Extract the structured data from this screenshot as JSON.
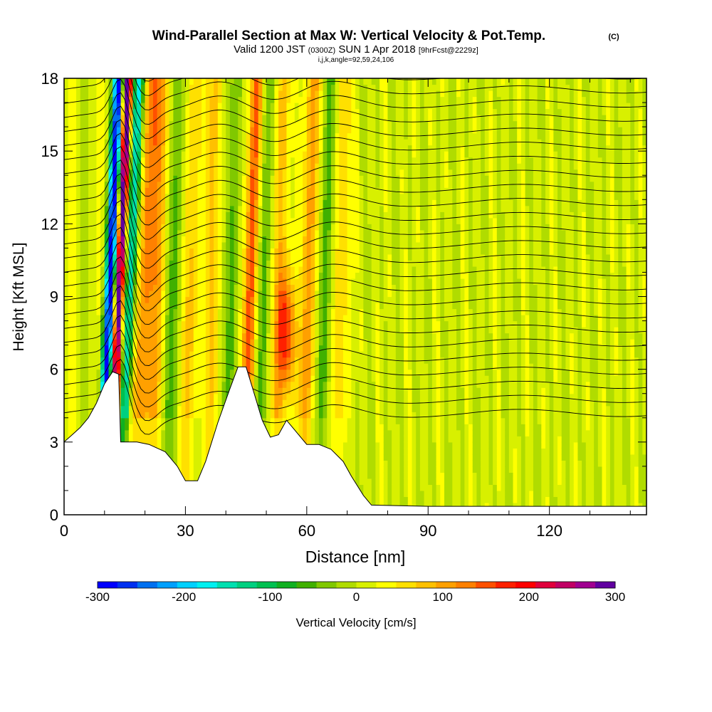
{
  "chart_data": {
    "type": "heatmap",
    "title": "Wind-Parallel Section at Max W: Vertical Velocity & Pot.Temp.",
    "title_mark": "(C)",
    "subtitle_parts": [
      "Valid 1200 JST ",
      "(0300Z)",
      " SUN 1 Apr 2018 ",
      "[9hrFcst@2229z]"
    ],
    "subtitle2": "i,j,k,angle=92,59,24,106",
    "xlabel": "Distance [nm]",
    "ylabel": "Height [Kft MSL]",
    "xlim": [
      0,
      144
    ],
    "ylim": [
      0,
      18
    ],
    "x_ticks": [
      "0",
      "30",
      "60",
      "90",
      "120"
    ],
    "x_tick_values": [
      0,
      30,
      60,
      90,
      120
    ],
    "y_ticks": [
      "0",
      "3",
      "6",
      "9",
      "12",
      "15",
      "18"
    ],
    "y_tick_values": [
      0,
      3,
      6,
      9,
      12,
      15,
      18
    ],
    "terrain_height": [
      [
        0,
        3.0
      ],
      [
        2,
        3.3
      ],
      [
        4,
        3.6
      ],
      [
        6,
        4.0
      ],
      [
        8,
        4.6
      ],
      [
        10,
        5.4
      ],
      [
        12,
        5.9
      ],
      [
        13.5,
        5.8
      ],
      [
        14,
        3.0
      ],
      [
        18,
        3.0
      ],
      [
        21,
        2.9
      ],
      [
        25,
        2.6
      ],
      [
        28,
        2.0
      ],
      [
        30,
        1.4
      ],
      [
        33,
        1.4
      ],
      [
        35,
        2.2
      ],
      [
        38,
        3.8
      ],
      [
        41,
        5.2
      ],
      [
        43,
        6.1
      ],
      [
        45,
        6.1
      ],
      [
        47,
        5.0
      ],
      [
        49,
        3.9
      ],
      [
        51,
        3.2
      ],
      [
        53,
        3.3
      ],
      [
        55,
        3.9
      ],
      [
        57,
        3.5
      ],
      [
        60,
        2.9
      ],
      [
        63,
        2.9
      ],
      [
        66,
        2.7
      ],
      [
        69,
        2.2
      ],
      [
        71,
        1.6
      ],
      [
        74,
        0.8
      ],
      [
        76,
        0.4
      ],
      [
        90,
        0.35
      ],
      [
        144,
        0.35
      ]
    ],
    "velocity_features": [
      {
        "x": 12.5,
        "z": 11.5,
        "w": -300
      },
      {
        "x": 14.5,
        "z": 13.0,
        "w": 300
      },
      {
        "x": 16.5,
        "z": 15.0,
        "w": -200
      },
      {
        "x": 22.0,
        "z": 14.0,
        "w": 110
      },
      {
        "x": 32.0,
        "z": 15.0,
        "w": -60
      },
      {
        "x": 46.0,
        "z": 15.0,
        "w": 170
      },
      {
        "x": 55.0,
        "z": 7.5,
        "w": 170
      },
      {
        "x": 60.0,
        "z": 14.0,
        "w": 110
      },
      {
        "x": 66.0,
        "z": 14.0,
        "w": -80
      }
    ],
    "colorbar": {
      "label": "Vertical Velocity [cm/s]",
      "min": -300,
      "max": 300,
      "tick_labels": [
        "-300",
        "-200",
        "-100",
        "0",
        "100",
        "200",
        "300"
      ],
      "tick_values": [
        -300,
        -200,
        -100,
        0,
        100,
        200,
        300
      ],
      "colors": [
        "#0000ff",
        "#0030f0",
        "#0070f0",
        "#00a0ff",
        "#00d0ff",
        "#00f0f0",
        "#00e0b0",
        "#00d080",
        "#00c050",
        "#10b020",
        "#40b000",
        "#80c800",
        "#b0dc00",
        "#d8f000",
        "#ffff00",
        "#ffe000",
        "#ffc000",
        "#ffa000",
        "#ff8000",
        "#ff5000",
        "#ff2000",
        "#ff0000",
        "#e0003c",
        "#c00064",
        "#a00090",
        "#6000a0"
      ]
    },
    "contour_field": "Potential Temperature"
  }
}
